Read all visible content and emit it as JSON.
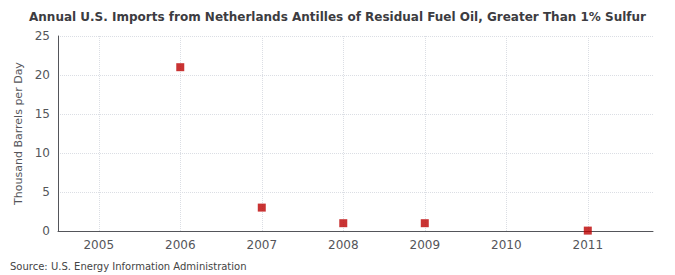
{
  "chart_data": {
    "type": "scatter",
    "title": "Annual U.S. Imports from Netherlands Antilles of Residual Fuel Oil, Greater Than 1% Sulfur",
    "ylabel": "Thousand Barrels per Day",
    "annotation": "Source: U.S. Energy Information Administration",
    "x": [
      2006,
      2007,
      2008,
      2009,
      2011
    ],
    "values": [
      21,
      3,
      1,
      1,
      0.05
    ],
    "color": "#bb0000",
    "marker": "square",
    "xlim": [
      2004.5,
      2011.8
    ],
    "xticks": [
      2005,
      2006,
      2007,
      2008,
      2009,
      2010,
      2011
    ],
    "ylim": [
      0,
      25
    ],
    "yticks": [
      0,
      5,
      10,
      15,
      20,
      25
    ],
    "grid": true
  }
}
